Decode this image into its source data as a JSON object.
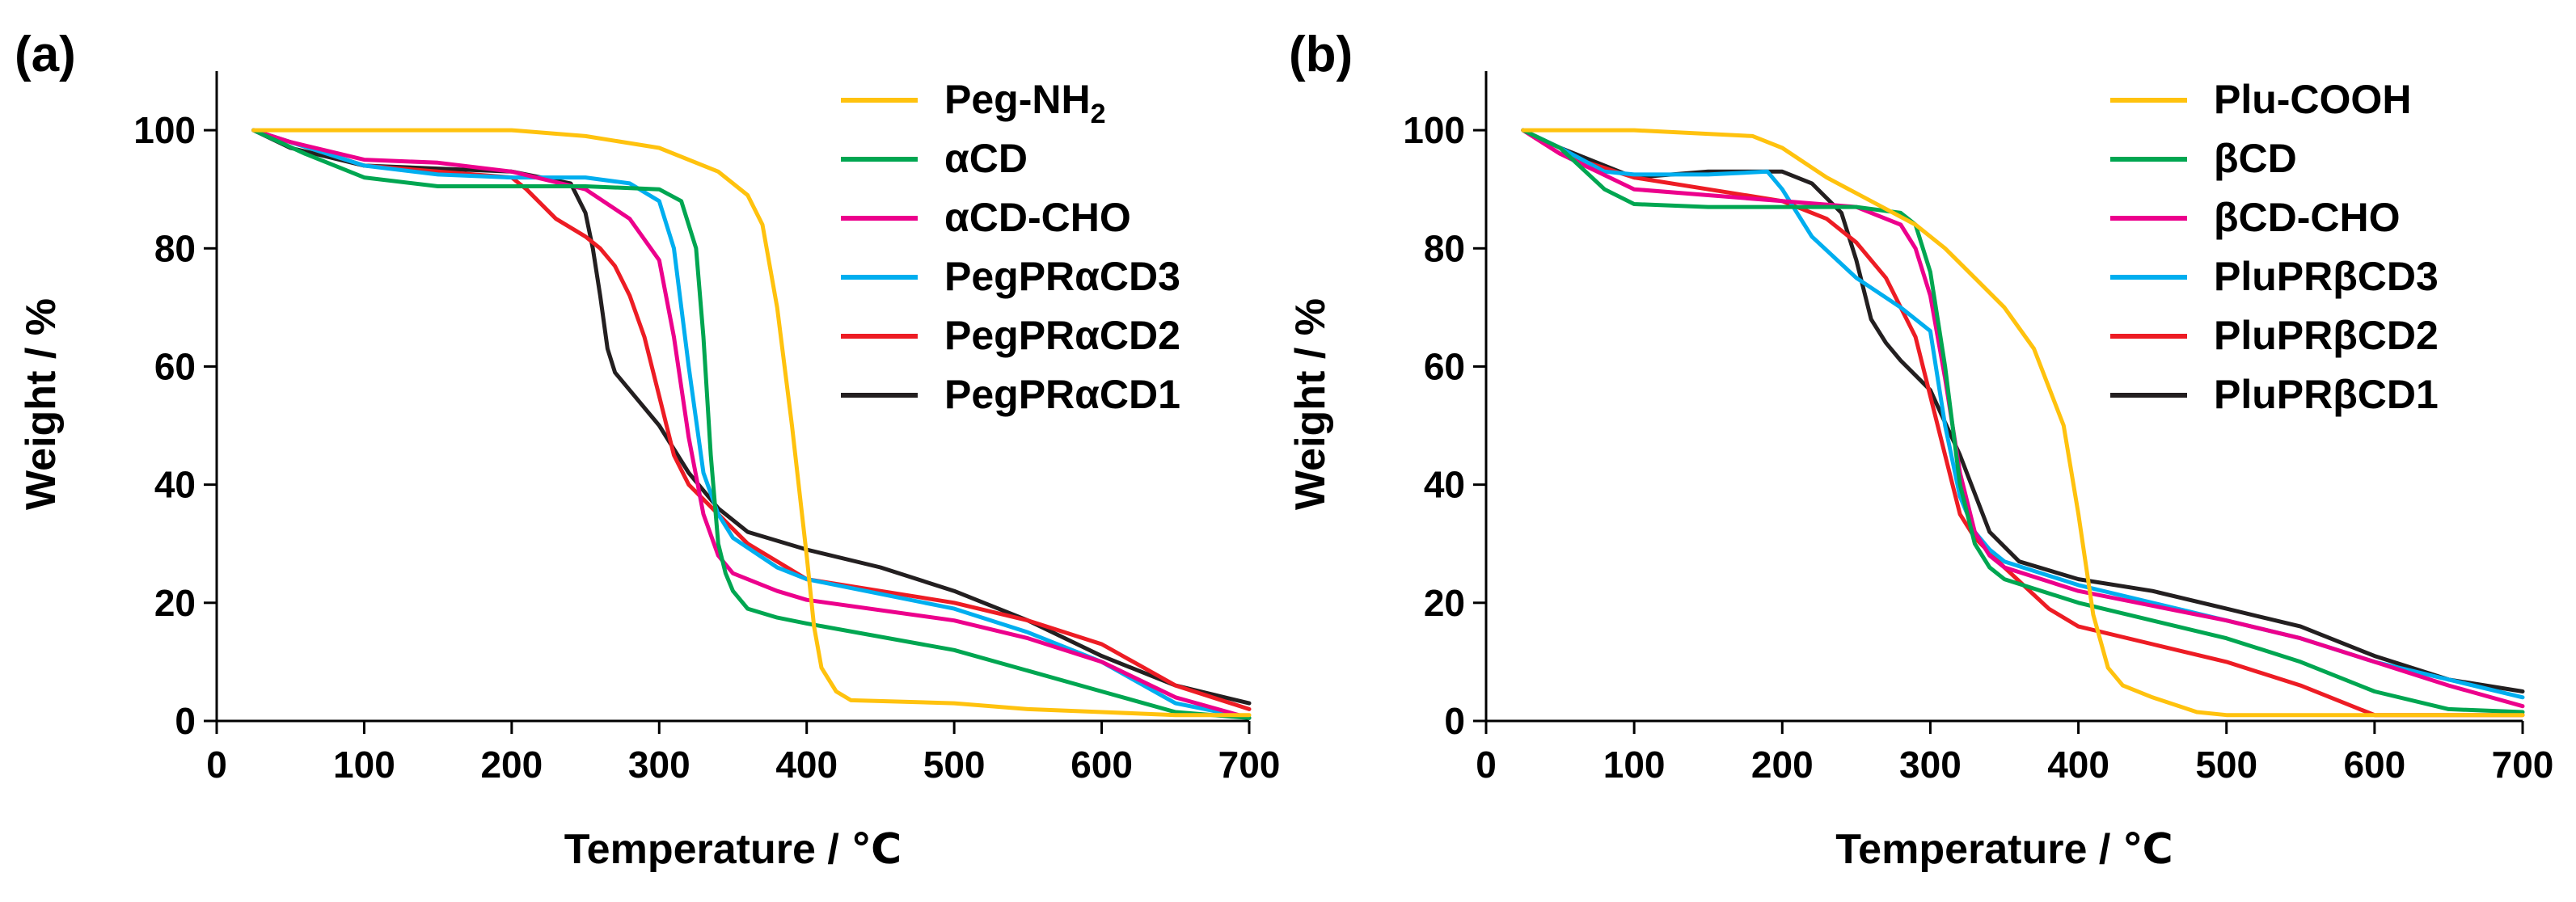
{
  "chart_data": [
    {
      "type": "line",
      "panel_label": "(a)",
      "xlabel": "Temperature / ℃",
      "ylabel": "Weight / %",
      "xlim": [
        0,
        700
      ],
      "ylim": [
        0,
        110
      ],
      "xticks": [
        0,
        100,
        200,
        300,
        400,
        500,
        600,
        700
      ],
      "yticks": [
        0,
        20,
        40,
        60,
        80,
        100
      ],
      "legend_position": "top-right",
      "series": [
        {
          "name": "Peg-NH₂",
          "color": "#FFC20E",
          "x": [
            25,
            100,
            200,
            250,
            300,
            340,
            360,
            370,
            380,
            390,
            400,
            405,
            410,
            420,
            430,
            500,
            550,
            600,
            650,
            700
          ],
          "y": [
            100,
            100,
            100,
            99,
            97,
            93,
            89,
            84,
            70,
            50,
            28,
            16,
            9,
            5,
            3.5,
            3,
            2,
            1.5,
            1,
            1
          ]
        },
        {
          "name": "αCD",
          "color": "#00A651",
          "x": [
            25,
            60,
            100,
            150,
            200,
            250,
            300,
            315,
            325,
            330,
            335,
            340,
            345,
            350,
            360,
            380,
            400,
            500,
            600,
            650,
            700
          ],
          "y": [
            100,
            96,
            92,
            90.5,
            90.5,
            90.5,
            90,
            88,
            80,
            65,
            45,
            30,
            25,
            22,
            19,
            17.5,
            16.5,
            12,
            5,
            1.5,
            0.5
          ]
        },
        {
          "name": "αCD-CHO",
          "color": "#EC008C",
          "x": [
            25,
            50,
            100,
            150,
            200,
            250,
            280,
            300,
            310,
            320,
            330,
            340,
            350,
            380,
            400,
            500,
            550,
            600,
            650,
            700
          ],
          "y": [
            100,
            98,
            95,
            94.5,
            93,
            90,
            85,
            78,
            65,
            48,
            35,
            28,
            25,
            22,
            20.5,
            17,
            14,
            10,
            4,
            0.5
          ]
        },
        {
          "name": "PegPRαCD3",
          "color": "#00AEEF",
          "x": [
            25,
            50,
            100,
            150,
            200,
            250,
            280,
            300,
            310,
            320,
            330,
            340,
            350,
            380,
            400,
            500,
            550,
            600,
            650,
            700
          ],
          "y": [
            100,
            98,
            94,
            92.5,
            92,
            92,
            91,
            88,
            80,
            60,
            42,
            35,
            31,
            26,
            24,
            19,
            15,
            10,
            3,
            0.5
          ]
        },
        {
          "name": "PegPRαCD2",
          "color": "#ED1C24",
          "x": [
            25,
            50,
            100,
            150,
            200,
            210,
            230,
            250,
            260,
            270,
            280,
            290,
            300,
            310,
            320,
            340,
            360,
            400,
            450,
            500,
            550,
            600,
            650,
            700
          ],
          "y": [
            100,
            98,
            94,
            93,
            92,
            90,
            85,
            82,
            80,
            77,
            72,
            65,
            55,
            45,
            40,
            35,
            30,
            24,
            22,
            20,
            17,
            13,
            6,
            2
          ]
        },
        {
          "name": "PegPRαCD1",
          "color": "#231F20",
          "x": [
            25,
            50,
            100,
            150,
            200,
            240,
            250,
            255,
            260,
            265,
            270,
            280,
            300,
            320,
            340,
            360,
            400,
            450,
            500,
            550,
            600,
            650,
            700
          ],
          "y": [
            100,
            97,
            94,
            93.5,
            93,
            91,
            86,
            80,
            72,
            63,
            59,
            56,
            50,
            42,
            36,
            32,
            29,
            26,
            22,
            17,
            11,
            6,
            3
          ]
        }
      ]
    },
    {
      "type": "line",
      "panel_label": "(b)",
      "xlabel": "Temperature / ℃",
      "ylabel": "Weight / %",
      "xlim": [
        0,
        700
      ],
      "ylim": [
        0,
        110
      ],
      "xticks": [
        0,
        100,
        200,
        300,
        400,
        500,
        600,
        700
      ],
      "yticks": [
        0,
        20,
        40,
        60,
        80,
        100
      ],
      "legend_position": "top-right",
      "series": [
        {
          "name": "Plu-COOH",
          "color": "#FFC20E",
          "x": [
            25,
            100,
            180,
            200,
            230,
            260,
            290,
            310,
            330,
            350,
            370,
            390,
            400,
            410,
            420,
            430,
            450,
            480,
            500,
            550,
            700
          ],
          "y": [
            100,
            100,
            99,
            97,
            92,
            88,
            84,
            80,
            75,
            70,
            63,
            50,
            35,
            18,
            9,
            6,
            4,
            1.5,
            1,
            1,
            1
          ]
        },
        {
          "name": "βCD",
          "color": "#00A651",
          "x": [
            25,
            50,
            80,
            100,
            150,
            200,
            250,
            280,
            290,
            300,
            310,
            320,
            330,
            340,
            350,
            400,
            500,
            550,
            600,
            650,
            700
          ],
          "y": [
            100,
            97,
            90,
            87.5,
            87,
            87,
            87,
            86,
            84,
            76,
            60,
            40,
            30,
            26,
            24,
            20,
            14,
            10,
            5,
            2,
            1.5
          ]
        },
        {
          "name": "βCD-CHO",
          "color": "#EC008C",
          "x": [
            25,
            50,
            100,
            150,
            200,
            250,
            280,
            290,
            300,
            310,
            320,
            330,
            340,
            350,
            400,
            500,
            550,
            600,
            650,
            700
          ],
          "y": [
            100,
            96,
            90,
            89,
            88,
            87,
            84,
            80,
            72,
            58,
            42,
            32,
            28,
            26,
            22,
            17,
            14,
            10,
            6,
            2.5
          ]
        },
        {
          "name": "PluPRβCD3",
          "color": "#00AEEF",
          "x": [
            25,
            50,
            80,
            100,
            150,
            190,
            200,
            220,
            250,
            280,
            300,
            310,
            320,
            330,
            340,
            350,
            400,
            500,
            550,
            600,
            650,
            700
          ],
          "y": [
            100,
            97,
            93,
            92.5,
            92.5,
            93,
            90,
            82,
            75,
            70,
            66,
            50,
            38,
            32,
            29,
            27,
            23,
            17,
            14,
            10,
            7,
            4
          ]
        },
        {
          "name": "PluPRβCD2",
          "color": "#ED1C24",
          "x": [
            25,
            50,
            100,
            150,
            200,
            230,
            250,
            270,
            290,
            300,
            310,
            320,
            330,
            350,
            380,
            400,
            450,
            500,
            550,
            580,
            600,
            700
          ],
          "y": [
            100,
            96,
            92,
            90,
            88,
            85,
            81,
            75,
            65,
            55,
            45,
            35,
            31,
            26,
            19,
            16,
            13,
            10,
            6,
            3,
            1,
            1
          ]
        },
        {
          "name": "PluPRβCD1",
          "color": "#231F20",
          "x": [
            25,
            50,
            100,
            150,
            200,
            220,
            240,
            250,
            260,
            270,
            280,
            300,
            320,
            340,
            360,
            400,
            450,
            500,
            550,
            600,
            650,
            700
          ],
          "y": [
            100,
            97,
            92,
            93,
            93,
            91,
            86,
            78,
            68,
            64,
            61,
            56,
            45,
            32,
            27,
            24,
            22,
            19,
            16,
            11,
            7,
            5
          ]
        }
      ]
    }
  ]
}
